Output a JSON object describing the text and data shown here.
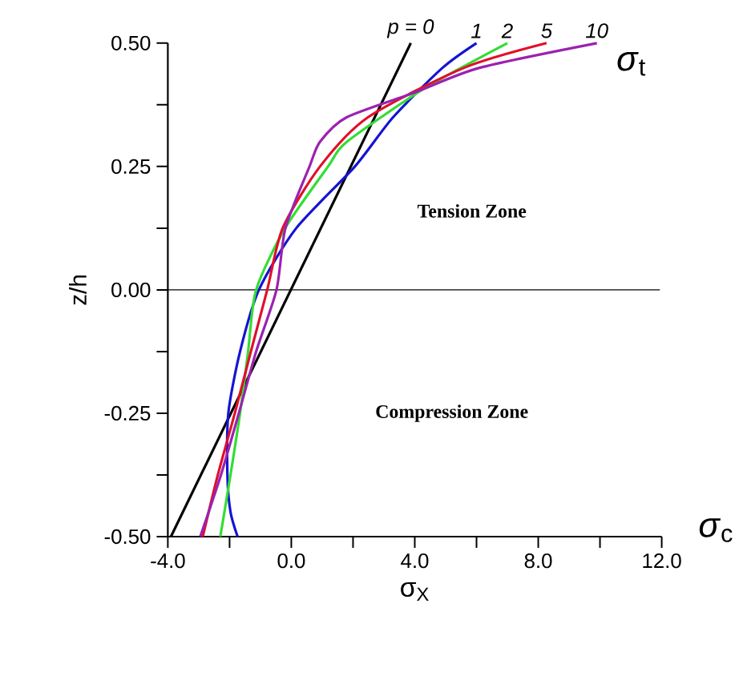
{
  "chart_data": {
    "type": "line",
    "xlabel": "σ$_{X}$",
    "ylabel": "z/h",
    "xlim": [
      -4,
      12
    ],
    "ylim": [
      -0.5,
      0.5
    ],
    "xticks": [
      {
        "value": -4,
        "label": "-4.0"
      },
      {
        "value": -2,
        "label": null
      },
      {
        "value": 0,
        "label": "0.0"
      },
      {
        "value": 2,
        "label": null
      },
      {
        "value": 4,
        "label": "4.0"
      },
      {
        "value": 6,
        "label": null
      },
      {
        "value": 8,
        "label": "8.0"
      },
      {
        "value": 10,
        "label": null
      },
      {
        "value": 12,
        "label": "12.0"
      }
    ],
    "yticks": [
      {
        "value": -0.5,
        "label": "-0.50"
      },
      {
        "value": -0.375,
        "label": null
      },
      {
        "value": -0.25,
        "label": "-0.25"
      },
      {
        "value": -0.125,
        "label": null
      },
      {
        "value": 0,
        "label": "0.00"
      },
      {
        "value": 0.125,
        "label": null
      },
      {
        "value": 0.25,
        "label": "0.25"
      },
      {
        "value": 0.375,
        "label": null
      },
      {
        "value": 0.5,
        "label": "0.50"
      }
    ],
    "grid": false,
    "legend": false,
    "marker": "none",
    "line_style": "solid",
    "ref_lines": [
      {
        "axis": "y",
        "value": 0,
        "color": "#000000"
      }
    ],
    "annotations": [
      "Tension Zone",
      "Compression Zone",
      "*σ*$_{t}$",
      "*σ*$_{c}$"
    ],
    "series": [
      {
        "name": "p = 0",
        "color": "#000000",
        "x": [
          -3.9,
          3.87
        ],
        "values": [
          -0.5,
          0.5
        ]
      },
      {
        "name": "1",
        "color": "#1414d2",
        "x": [
          -1.74,
          -1.97,
          -2.07,
          -2.04,
          -1.66,
          -1.05,
          0.16,
          2.06,
          3.3,
          4.9,
          6.0
        ],
        "values": [
          -0.5,
          -0.45,
          -0.375,
          -0.25,
          -0.125,
          0,
          0.125,
          0.25,
          0.35,
          0.45,
          0.5
        ]
      },
      {
        "name": "2",
        "color": "#33dd33",
        "x": [
          -2.3,
          -1.97,
          -1.66,
          -1.4,
          -1.14,
          -0.2,
          1.19,
          1.8,
          4.1,
          5.5,
          7.0
        ],
        "values": [
          -0.5,
          -0.375,
          -0.25,
          -0.125,
          0,
          0.125,
          0.25,
          0.3,
          0.4,
          0.45,
          0.5
        ]
      },
      {
        "name": "5",
        "color": "#e0102a",
        "x": [
          -2.87,
          -2.38,
          -1.83,
          -1.31,
          -0.78,
          -0.28,
          0.93,
          2.49,
          5.6,
          8.27
        ],
        "values": [
          -0.5,
          -0.375,
          -0.25,
          -0.125,
          0,
          0.125,
          0.25,
          0.35,
          0.45,
          0.5
        ]
      },
      {
        "name": "10",
        "color": "#9b22b0",
        "x": [
          -2.95,
          -2.28,
          -1.7,
          -1.14,
          -0.48,
          -0.19,
          0.59,
          0.93,
          1.8,
          4.0,
          6.1,
          9.9
        ],
        "values": [
          -0.5,
          -0.375,
          -0.25,
          -0.125,
          0,
          0.125,
          0.25,
          0.3,
          0.35,
          0.4,
          0.45,
          0.5
        ]
      }
    ]
  }
}
